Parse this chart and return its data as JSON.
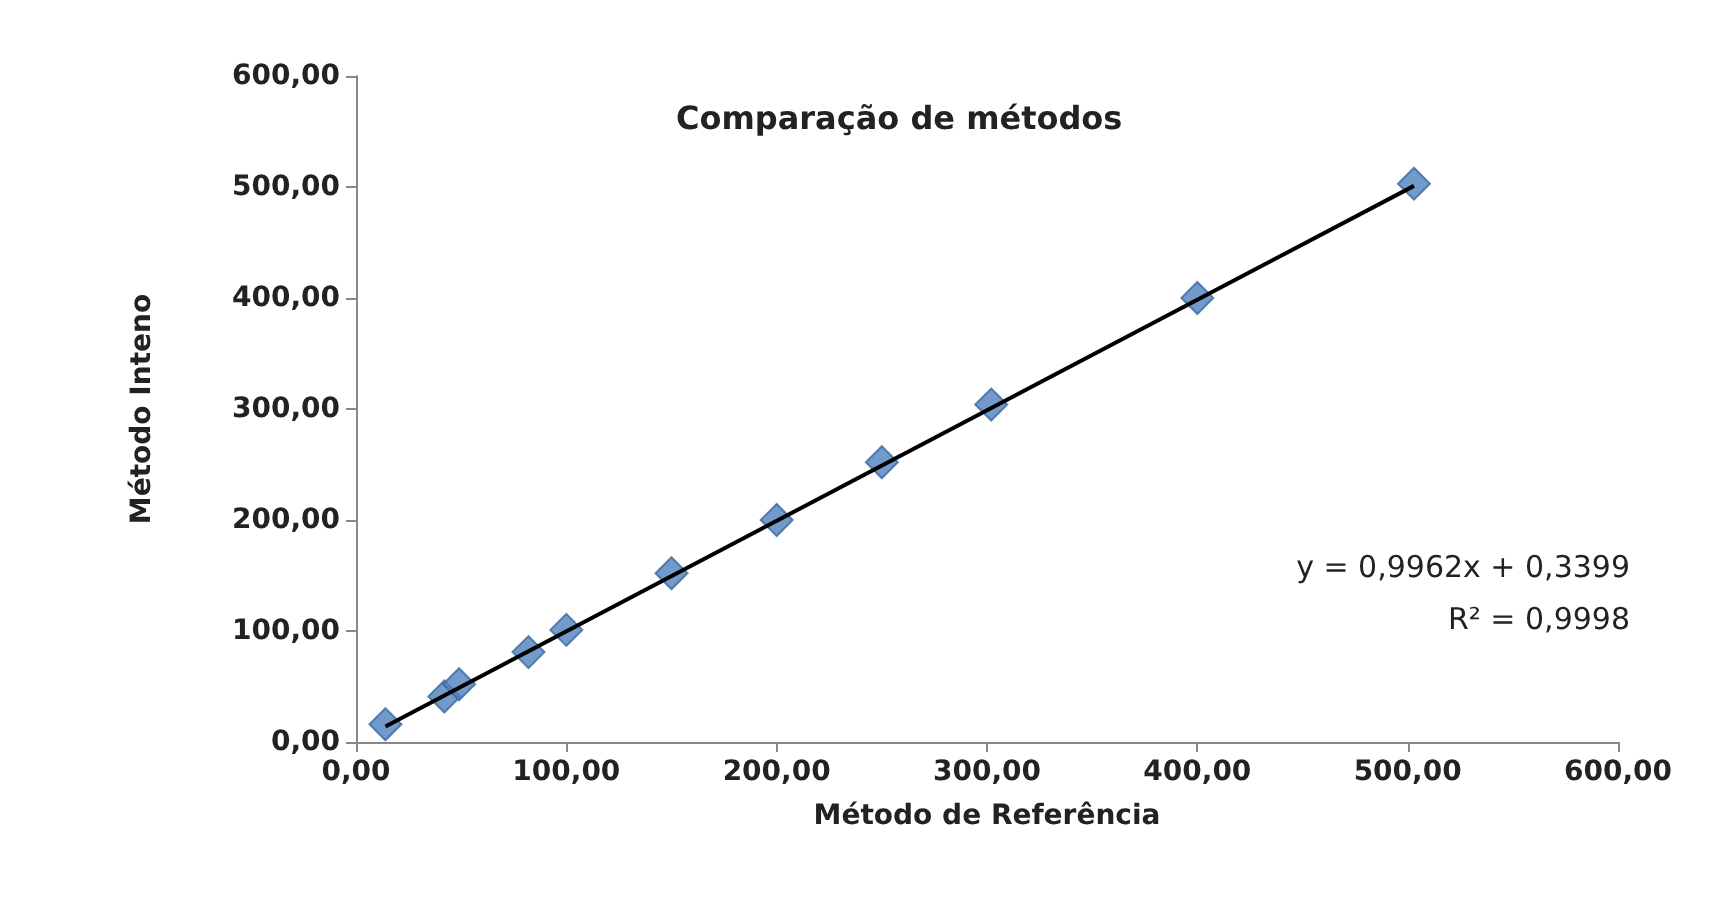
{
  "chart_data": {
    "type": "scatter",
    "title": "Comparação de métodos",
    "xlabel": "Método de Referência",
    "ylabel": "Método Inteno",
    "xlim": [
      0,
      600
    ],
    "xticks": [
      {
        "value": 0,
        "label": "0,00"
      },
      {
        "value": 100,
        "label": "100,00"
      },
      {
        "value": 200,
        "label": "200,00"
      },
      {
        "value": 300,
        "label": "300,00"
      },
      {
        "value": 400,
        "label": "400,00"
      },
      {
        "value": 500,
        "label": "500,00"
      },
      {
        "value": 600,
        "label": "600,00"
      }
    ],
    "ylim": [
      0,
      600
    ],
    "yticks": [
      {
        "value": 0,
        "label": "0,00"
      },
      {
        "value": 100,
        "label": "100,00"
      },
      {
        "value": 200,
        "label": "200,00"
      },
      {
        "value": 300,
        "label": "300,00"
      },
      {
        "value": 400,
        "label": "400,00"
      },
      {
        "value": 500,
        "label": "500,00"
      },
      {
        "value": 600,
        "label": "600,00"
      }
    ],
    "grid": false,
    "marker": "diamond",
    "series": [
      {
        "color": "#4f81bd",
        "x": [
          14,
          42,
          49,
          82,
          100,
          150,
          200,
          250,
          302,
          400,
          503
        ],
        "values": [
          16,
          41,
          52,
          81,
          101,
          152,
          200,
          252,
          304,
          400,
          503
        ]
      },
      {
        "type": "line",
        "color": "#000000",
        "marker": "none",
        "x": [
          14,
          503
        ],
        "values": [
          14,
          501
        ]
      }
    ],
    "annotations": [
      "y = 0,9962x + 0,3399",
      "R² = 0,9998"
    ]
  }
}
